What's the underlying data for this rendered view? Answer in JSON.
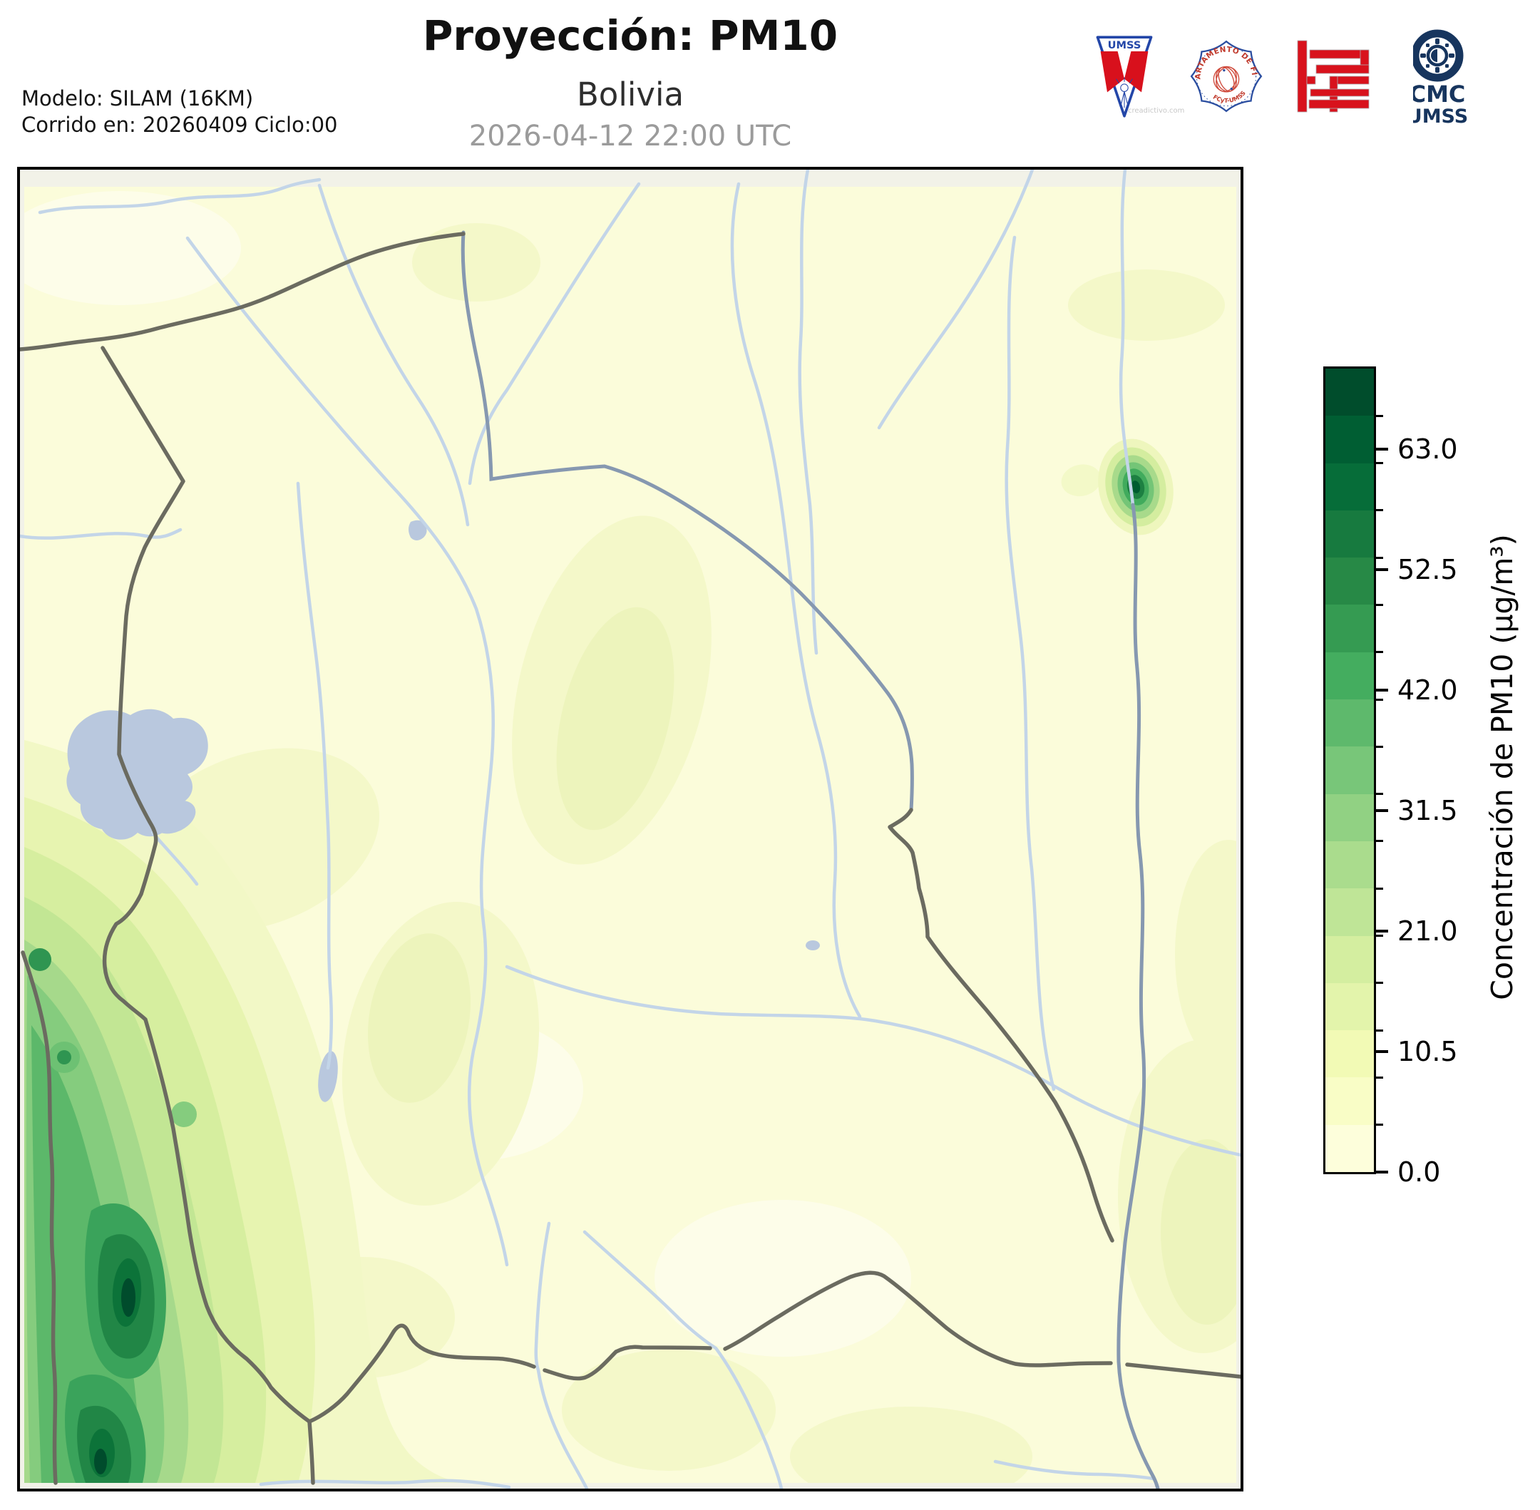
{
  "header": {
    "title": "Proyección: PM10",
    "subtitle": "Bolivia",
    "datetime": "2026-04-12 22:00 UTC",
    "model_line1": "Modelo: SILAM (16KM)",
    "model_line2": "Corrido en: 20260409 Ciclo:00"
  },
  "logos": {
    "umss_pennant": {
      "text": "UMSS",
      "watermark": "creadictivo.com",
      "blue": "#2346a8",
      "red": "#d8101c"
    },
    "physics_seal": {
      "arc_text": "DEPARTAMENTO DE FÍSICA",
      "footer_text": "FCyT-UMSS",
      "blue": "#2b4ea0",
      "red": "#c0392b"
    },
    "fcyt_block": {
      "red": "#d8121c"
    },
    "cmc": {
      "line1": "CMC",
      "line2": "UMSS",
      "navy": "#17355e"
    }
  },
  "colorbar": {
    "label": "Concentración de PM10 (µg/m³)",
    "vmin": 0,
    "vmax": 70,
    "major_ticks": [
      {
        "value": 63.0,
        "label": "63.0"
      },
      {
        "value": 52.5,
        "label": "52.5"
      },
      {
        "value": 42.0,
        "label": "42.0"
      },
      {
        "value": 31.5,
        "label": "31.5"
      },
      {
        "value": 21.0,
        "label": "21.0"
      },
      {
        "value": 10.5,
        "label": "10.5"
      },
      {
        "value": 0.0,
        "label": "0.0"
      }
    ],
    "segment_colors_bottom_to_top": [
      "#fdfedb",
      "#f9fdc6",
      "#f2fab5",
      "#e3f4ab",
      "#d4eea0",
      "#bfe597",
      "#aadc8d",
      "#91d183",
      "#78c679",
      "#5eb96c",
      "#44ad5f",
      "#359b52",
      "#278946",
      "#177a3f",
      "#066d39",
      "#005e33",
      "#004d2c"
    ],
    "outline_color": "#000000"
  },
  "chart_data": {
    "type": "heatmap",
    "title": "Proyección: PM10",
    "region": "Bolivia",
    "timestamp": "2026-04-12 22:00 UTC",
    "model": "SILAM (16KM)",
    "run": "20260409 Ciclo:00",
    "units": "µg/m³",
    "colormap": "YlGn",
    "value_range": [
      0,
      70
    ],
    "contour_step": 4.12,
    "legend_position": "right",
    "background_level": "0 - 4 µg/m³ over most of Bolivia",
    "hotspots": [
      {
        "location": "southwest Andes along Chile-Bolivia border",
        "peak_value": "≈70 µg/m³",
        "extent": "broad N-S band with two dark cores"
      },
      {
        "location": "second southwest core near bottom edge",
        "peak_value": "≈60 µg/m³"
      },
      {
        "location": "northeast near Paraguay river (Brazil border)",
        "peak_value": "≈55 µg/m³",
        "extent": "small isolated plume"
      }
    ],
    "map_colors": {
      "base_fill": "#fbfcda",
      "margin_fill": "#f2f2e8",
      "river": "#c3d5e8",
      "main_river": "#8698b0",
      "border": "#6b6b60",
      "lake": "#b9c8de",
      "frame": "#000000"
    }
  }
}
